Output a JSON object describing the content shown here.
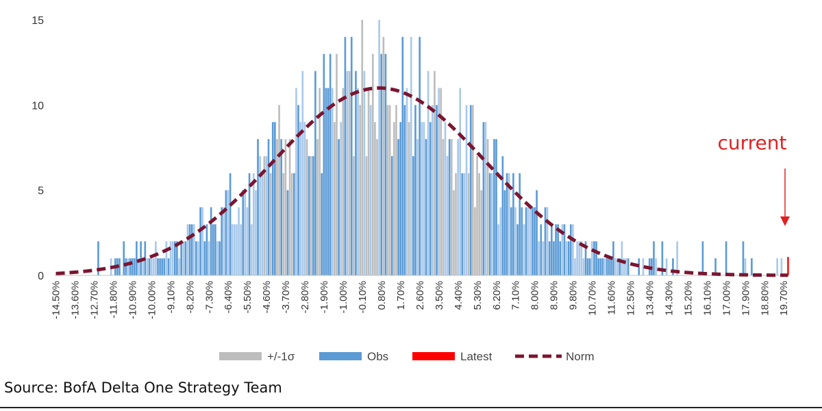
{
  "chart_data": {
    "type": "bar",
    "title": "",
    "xlabel": "",
    "ylabel": "",
    "ylim": [
      0,
      16
    ],
    "yticks": [
      0,
      5,
      10,
      15
    ],
    "x_range": [
      -14.5,
      19.9
    ],
    "x_step": 0.1,
    "x_ticks": [
      "-14.50%",
      "-13.60%",
      "-12.70%",
      "-11.80%",
      "-10.90%",
      "-10.00%",
      "-9.10%",
      "-8.20%",
      "-7.30%",
      "-6.40%",
      "-5.50%",
      "-4.60%",
      "-3.70%",
      "-2.80%",
      "-1.90%",
      "-1.00%",
      "-0.10%",
      "0.80%",
      "1.70%",
      "2.60%",
      "3.50%",
      "4.40%",
      "5.30%",
      "6.20%",
      "7.10%",
      "8.00%",
      "8.90%",
      "9.80%",
      "10.70%",
      "11.60%",
      "12.50%",
      "13.40%",
      "14.30%",
      "15.20%",
      "16.10%",
      "17.00%",
      "17.90%",
      "18.80%",
      "19.70%"
    ],
    "series": [
      {
        "name": "+/-1σ",
        "kind": "bars",
        "color": "#bdbdbd",
        "range": [
          -5.0,
          6.0
        ],
        "note": "observations within one standard deviation of the mean"
      },
      {
        "name": "Obs",
        "kind": "bars",
        "color": "#5b9bd5",
        "note": "histogram counts of daily returns per 0.1% bin"
      },
      {
        "name": "Latest",
        "kind": "bar",
        "color": "#ff0000",
        "x": 19.9,
        "value": 1
      },
      {
        "name": "Norm",
        "kind": "dashed-line",
        "color": "#7b1530",
        "mean": 0.7,
        "std": 5.0,
        "peak": 11
      }
    ],
    "legend": {
      "position": "bottom",
      "entries": [
        "+/-1σ",
        "Obs",
        "Latest",
        "Norm"
      ]
    },
    "annotations": [
      {
        "text": "current",
        "color": "#e02020",
        "target": "Latest",
        "arrow": "down"
      }
    ]
  },
  "source": "Source: BofA Delta One Strategy Team",
  "colors": {
    "obs": "#5b9bd5",
    "obs_light": "#a9c9ea",
    "sigma": "#bdbdbd",
    "latest": "#ff0000",
    "norm": "#7b1530",
    "annotation": "#e02020"
  }
}
